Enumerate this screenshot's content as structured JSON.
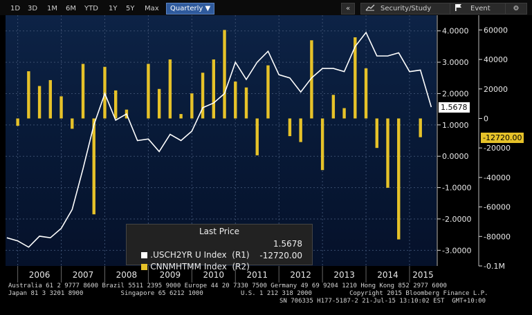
{
  "toolbar": {
    "ranges": [
      "1D",
      "3D",
      "1M",
      "6M",
      "YTD",
      "1Y",
      "5Y",
      "Max"
    ],
    "period": "Quarterly ▼",
    "collapse": "«",
    "security_study": "Security/Study",
    "event": "Event",
    "settings_icon": "gear-icon",
    "chart_icon": "line-chart-icon",
    "flag_icon": "flag-icon"
  },
  "legend": {
    "title": "Last Price",
    "s1_label": ".USCH2YR U Index  (R1)",
    "s1_value": "1.5678",
    "s2_label": "CNNMHTMM Index  (R2)",
    "s2_value": "-12720.00"
  },
  "footer": {
    "line1": "Australia 61 2 9777 8600 Brazil 5511 2395 9000 Europe 44 20 7330 7500 Germany 49 69 9204 1210 Hong Kong 852 2977 6000",
    "line2": "Japan 81 3 3201 8900          Singapore 65 6212 1000          U.S. 1 212 318 2000          Copyright 2015 Bloomberg Finance L.P.",
    "line3": "SN 706335 H177-5187-2 21-Jul-15 13:10:02 EST  GMT+10:00"
  },
  "colors": {
    "line": "#ffffff",
    "bar": "#e6c229",
    "tag_r1_bg": "#ffffff",
    "tag_r2_bg": "#e6c229"
  },
  "chart_data": {
    "type": "bar+line",
    "x_labels": [
      "2006",
      "2007",
      "2008",
      "2009",
      "2010",
      "2011",
      "2012",
      "2013",
      "2014",
      "2015"
    ],
    "r1_ticks": [
      "4.0000",
      "3.0000",
      "2.0000",
      "1.0000",
      "0.0000",
      "-1.0000",
      "-2.0000",
      "-3.0000"
    ],
    "r2_ticks": [
      "60000",
      "40000",
      "20000",
      "0",
      "-20000",
      "-40000",
      "-60000",
      "-80000",
      "-0.1M"
    ],
    "r1_range": [
      -3.5,
      4.5
    ],
    "r2_range": [
      -100000,
      70000
    ],
    "line_series": {
      "name": ".USCH2YR U Index",
      "axis": "R1",
      "last": "1.5678",
      "x": [
        2005.75,
        2006.0,
        2006.25,
        2006.5,
        2006.75,
        2007.0,
        2007.25,
        2007.5,
        2007.75,
        2008.0,
        2008.25,
        2008.5,
        2008.75,
        2009.0,
        2009.25,
        2009.5,
        2009.75,
        2010.0,
        2010.25,
        2010.5,
        2010.75,
        2011.0,
        2011.25,
        2011.5,
        2011.75,
        2012.0,
        2012.25,
        2012.5,
        2012.75,
        2013.0,
        2013.25,
        2013.5,
        2013.75,
        2014.0,
        2014.25,
        2014.5,
        2014.75,
        2015.0,
        2015.25,
        2015.5
      ],
      "values": [
        -2.6,
        -2.7,
        -2.9,
        -2.55,
        -2.6,
        -2.3,
        -1.7,
        -0.4,
        1.0,
        2.0,
        1.15,
        1.35,
        0.5,
        0.55,
        0.15,
        0.7,
        0.5,
        0.8,
        1.55,
        1.7,
        2.0,
        3.0,
        2.45,
        3.0,
        3.35,
        2.6,
        2.5,
        2.05,
        2.5,
        2.8,
        2.8,
        2.7,
        3.5,
        3.95,
        3.2,
        3.2,
        3.3,
        2.7,
        2.75,
        1.5678
      ]
    },
    "bar_series": {
      "name": "CNNMHTMM Index",
      "axis": "R2",
      "last": "-12720.00",
      "x": [
        2006.0,
        2006.25,
        2006.5,
        2006.75,
        2007.0,
        2007.25,
        2007.5,
        2007.75,
        2008.0,
        2008.25,
        2008.5,
        2008.75,
        2009.0,
        2009.25,
        2009.5,
        2009.75,
        2010.0,
        2010.25,
        2010.5,
        2010.75,
        2011.0,
        2011.25,
        2011.5,
        2011.75,
        2012.0,
        2012.25,
        2012.5,
        2012.75,
        2013.0,
        2013.25,
        2013.5,
        2013.75,
        2014.0,
        2014.25,
        2014.5,
        2014.75,
        2015.0,
        2015.25
      ],
      "values": [
        -5000,
        32000,
        22000,
        26000,
        15000,
        -7000,
        37000,
        -65000,
        35000,
        19000,
        6000,
        0,
        37000,
        20000,
        40000,
        3000,
        17000,
        31000,
        40000,
        60000,
        25000,
        21000,
        -25000,
        36000,
        0,
        -12000,
        -16000,
        53000,
        -35000,
        16000,
        7000,
        55000,
        34000,
        -20000,
        -47000,
        -82000,
        0,
        -12720
      ]
    },
    "legend_placement": "bottom-center",
    "grid": true
  }
}
